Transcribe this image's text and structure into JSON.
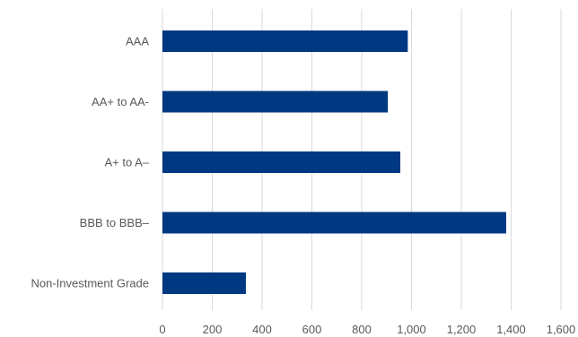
{
  "chart_data": {
    "type": "bar",
    "orientation": "horizontal",
    "title": "",
    "xlabel": "",
    "ylabel": "",
    "categories": [
      "AAA",
      "AA+ to AA-",
      "A+ to A–",
      "BBB to BBB–",
      "Non-Investment Grade"
    ],
    "values": [
      985,
      905,
      955,
      1380,
      335
    ],
    "xlim": [
      0,
      1600
    ],
    "xticks": [
      "0",
      "200",
      "400",
      "600",
      "800",
      "1,000",
      "1,200",
      "1,400",
      "1,600"
    ],
    "grid": true,
    "legend": "none",
    "bar_color": "#003882"
  }
}
